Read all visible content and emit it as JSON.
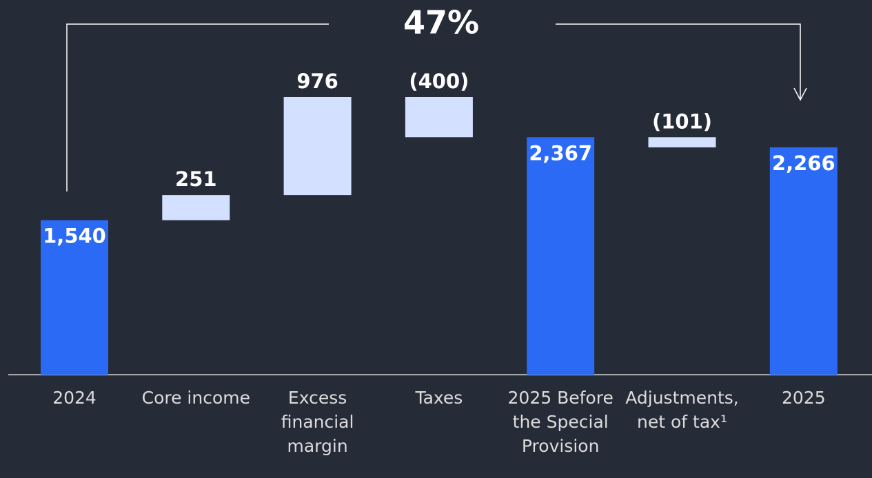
{
  "chart_data": {
    "type": "waterfall",
    "annotation": "47%",
    "categories": [
      "2024",
      "Core income",
      "Excess financial margin",
      "Taxes",
      "2025 Before the Special Provision",
      "Adjustments, net of tax¹",
      "2025"
    ],
    "values": [
      1540,
      251,
      976,
      -400,
      2367,
      -101,
      2266
    ],
    "value_labels": [
      "1,540",
      "251",
      "976",
      "(400)",
      "2,367",
      "(101)",
      "2,266"
    ],
    "is_total": [
      true,
      false,
      false,
      false,
      true,
      false,
      true
    ],
    "total_color": "#2a6af5",
    "change_color": "#d4e0ff"
  }
}
